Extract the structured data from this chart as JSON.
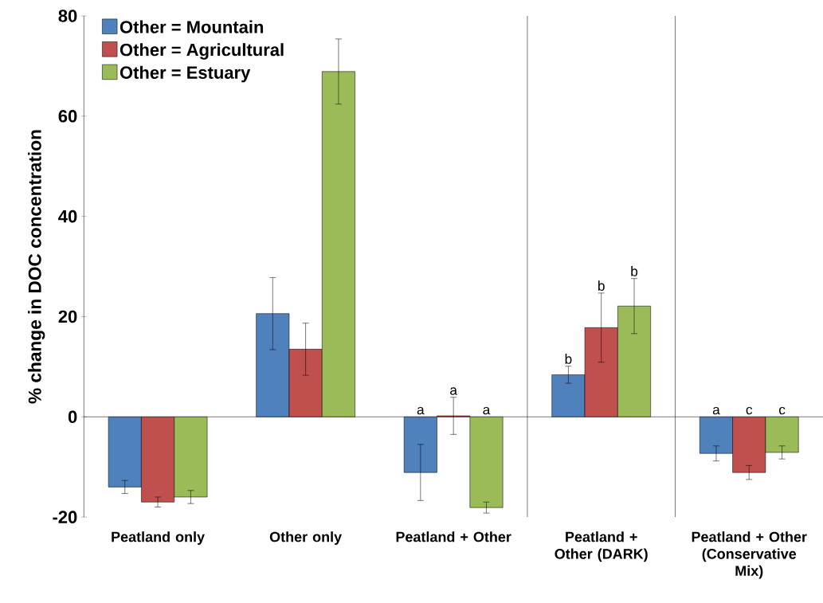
{
  "chart_data": {
    "type": "bar",
    "ylabel": "% change in DOC concentration",
    "categories": [
      "Peatland only",
      "Other only",
      "Peatland + Other",
      "Peatland + Other (DARK)",
      "Peatland + Other (Conservative Mix)"
    ],
    "series": [
      {
        "name": "Other = Mountain",
        "color": "#4f81bd",
        "values": [
          -14.0,
          20.6,
          -11.1,
          8.4,
          -7.3
        ],
        "errors": [
          1.3,
          7.2,
          5.6,
          1.7,
          1.5
        ],
        "value_labels": [
          null,
          null,
          "a",
          "b",
          "a"
        ]
      },
      {
        "name": "Other = Agricultural",
        "color": "#c0504d",
        "values": [
          -17.0,
          13.5,
          0.2,
          17.8,
          -11.1
        ],
        "errors": [
          1.0,
          5.2,
          3.7,
          6.9,
          1.4
        ],
        "value_labels": [
          null,
          null,
          "a",
          "b",
          "c"
        ]
      },
      {
        "name": "Other = Estuary",
        "color": "#9bbb59",
        "values": [
          -16.0,
          68.9,
          -18.1,
          22.1,
          -7.1
        ],
        "errors": [
          1.3,
          6.5,
          1.1,
          5.5,
          1.3
        ],
        "value_labels": [
          null,
          null,
          "a",
          "b",
          "c"
        ]
      }
    ],
    "ylim": [
      -20,
      80
    ],
    "yticks": [
      -20,
      0,
      20,
      40,
      60,
      80
    ],
    "legend": "top left"
  }
}
